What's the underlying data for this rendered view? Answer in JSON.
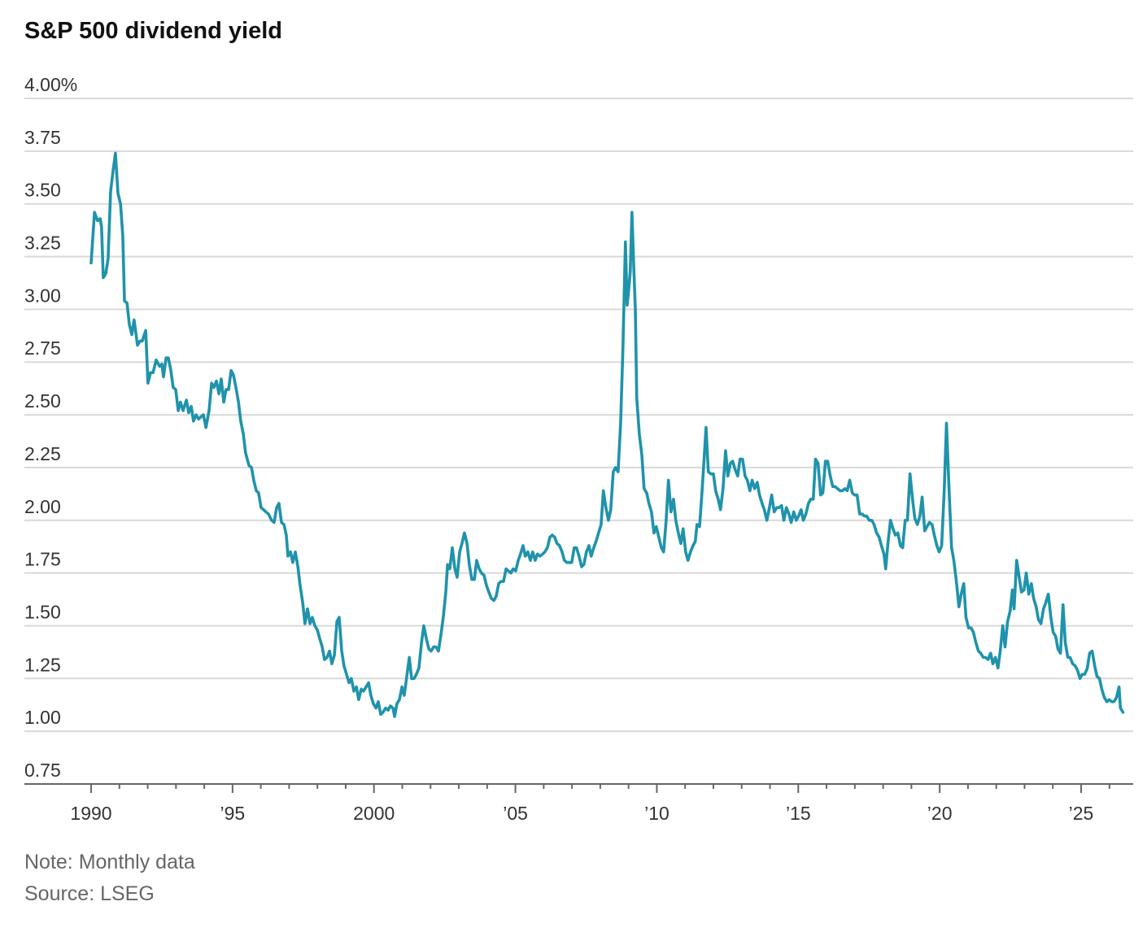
{
  "chart_data": {
    "type": "line",
    "title": "S&P 500 dividend yield",
    "note": "Note: Monthly data",
    "source": "Source: LSEG",
    "xlim": [
      1990,
      2026.84
    ],
    "xticks": [
      1990,
      {
        "value": 1995,
        "label": "’95"
      },
      2000,
      {
        "value": 2005,
        "label": "’05"
      },
      {
        "value": 2010,
        "label": "’10"
      },
      {
        "value": 2015,
        "label": "’15"
      },
      {
        "value": 2020,
        "label": "’20"
      },
      {
        "value": 2025,
        "label": "’25"
      }
    ],
    "xticks_minor": [
      1991,
      1992,
      1993,
      1994,
      1996,
      1997,
      1998,
      1999,
      2001,
      2002,
      2003,
      2004,
      2006,
      2007,
      2008,
      2009,
      2011,
      2012,
      2013,
      2014,
      2016,
      2017,
      2018,
      2019,
      2021,
      2022,
      2023,
      2024,
      2026
    ],
    "ylim": [
      0.75,
      4.0
    ],
    "yticks": [
      0.75,
      {
        "value": 1.0,
        "label": "1.00"
      },
      1.25,
      {
        "value": 1.5,
        "label": "1.50"
      },
      1.75,
      {
        "value": 2.0,
        "label": "2.00"
      },
      2.25,
      {
        "value": 2.5,
        "label": "2.50"
      },
      2.75,
      {
        "value": 3.0,
        "label": "3.00"
      },
      3.25,
      {
        "value": 3.5,
        "label": "3.50"
      },
      3.75,
      {
        "value": 4.0,
        "label": "4.00%"
      }
    ],
    "grid": true,
    "series": [
      {
        "color": "#1f93ab",
        "x": [
          1990.0,
          1990.12,
          1990.23,
          1990.32,
          1990.37,
          1990.43,
          1990.52,
          1990.6,
          1990.69,
          1990.78,
          1990.86,
          1990.95,
          1991.04,
          1991.12,
          1991.18,
          1991.27,
          1991.35,
          1991.44,
          1991.52,
          1991.64,
          1991.73,
          1991.81,
          1991.93,
          1992.01,
          1992.1,
          1992.19,
          1992.3,
          1992.42,
          1992.5,
          1992.56,
          1992.65,
          1992.73,
          1992.82,
          1992.9,
          1992.99,
          1993.08,
          1993.16,
          1993.25,
          1993.37,
          1993.45,
          1993.54,
          1993.62,
          1993.71,
          1993.8,
          1993.88,
          1993.97,
          1994.06,
          1994.17,
          1994.26,
          1994.34,
          1994.43,
          1994.52,
          1994.6,
          1994.69,
          1994.77,
          1994.86,
          1994.95,
          1995.03,
          1995.12,
          1995.21,
          1995.29,
          1995.38,
          1995.46,
          1995.58,
          1995.67,
          1995.75,
          1995.84,
          1995.92,
          1996.01,
          1996.1,
          1996.18,
          1996.27,
          1996.38,
          1996.47,
          1996.56,
          1996.64,
          1996.73,
          1996.82,
          1996.9,
          1996.96,
          1997.05,
          1997.13,
          1997.22,
          1997.31,
          1997.39,
          1997.48,
          1997.56,
          1997.65,
          1997.74,
          1997.82,
          1997.91,
          1998.0,
          1998.08,
          1998.17,
          1998.25,
          1998.34,
          1998.43,
          1998.51,
          1998.6,
          1998.69,
          1998.77,
          1998.86,
          1998.94,
          1999.03,
          1999.12,
          1999.2,
          1999.29,
          1999.38,
          1999.46,
          1999.55,
          1999.63,
          1999.72,
          1999.81,
          1999.89,
          1999.98,
          2000.07,
          2000.15,
          2000.24,
          2000.32,
          2000.41,
          2000.5,
          2000.58,
          2000.67,
          2000.73,
          2000.81,
          2000.9,
          2000.99,
          2001.07,
          2001.16,
          2001.25,
          2001.33,
          2001.42,
          2001.5,
          2001.59,
          2001.68,
          2001.76,
          2001.85,
          2001.94,
          2002.02,
          2002.11,
          2002.19,
          2002.28,
          2002.37,
          2002.45,
          2002.54,
          2002.6,
          2002.68,
          2002.77,
          2002.86,
          2002.94,
          2003.03,
          2003.11,
          2003.2,
          2003.29,
          2003.37,
          2003.46,
          2003.55,
          2003.63,
          2003.72,
          2003.8,
          2003.89,
          2003.98,
          2004.06,
          2004.15,
          2004.24,
          2004.32,
          2004.41,
          2004.49,
          2004.58,
          2004.67,
          2004.75,
          2004.84,
          2004.92,
          2005.01,
          2005.1,
          2005.18,
          2005.27,
          2005.35,
          2005.44,
          2005.53,
          2005.61,
          2005.7,
          2005.78,
          2005.87,
          2005.96,
          2006.04,
          2006.13,
          2006.22,
          2006.3,
          2006.39,
          2006.47,
          2006.56,
          2006.65,
          2006.73,
          2006.82,
          2006.91,
          2006.99,
          2007.08,
          2007.16,
          2007.25,
          2007.34,
          2007.42,
          2007.51,
          2007.6,
          2007.68,
          2007.77,
          2007.85,
          2007.94,
          2008.03,
          2008.11,
          2008.2,
          2008.29,
          2008.37,
          2008.46,
          2008.54,
          2008.63,
          2008.72,
          2008.8,
          2008.89,
          2008.95,
          2009.01,
          2009.06,
          2009.12,
          2009.18,
          2009.24,
          2009.29,
          2009.38,
          2009.47,
          2009.55,
          2009.64,
          2009.72,
          2009.81,
          2009.9,
          2009.98,
          2010.07,
          2010.16,
          2010.24,
          2010.33,
          2010.41,
          2010.5,
          2010.59,
          2010.67,
          2010.76,
          2010.85,
          2010.93,
          2011.02,
          2011.1,
          2011.19,
          2011.28,
          2011.36,
          2011.42,
          2011.51,
          2011.59,
          2011.68,
          2011.74,
          2011.82,
          2011.91,
          2012.0,
          2012.08,
          2012.17,
          2012.25,
          2012.34,
          2012.43,
          2012.51,
          2012.6,
          2012.68,
          2012.77,
          2012.86,
          2012.94,
          2013.03,
          2013.12,
          2013.2,
          2013.29,
          2013.37,
          2013.46,
          2013.55,
          2013.63,
          2013.72,
          2013.8,
          2013.89,
          2013.98,
          2014.06,
          2014.15,
          2014.24,
          2014.32,
          2014.41,
          2014.49,
          2014.58,
          2014.67,
          2014.75,
          2014.84,
          2014.93,
          2015.01,
          2015.1,
          2015.18,
          2015.27,
          2015.36,
          2015.44,
          2015.53,
          2015.61,
          2015.7,
          2015.79,
          2015.87,
          2015.96,
          2016.04,
          2016.13,
          2016.22,
          2016.3,
          2016.39,
          2016.48,
          2016.56,
          2016.65,
          2016.73,
          2016.82,
          2016.91,
          2016.99,
          2017.08,
          2017.17,
          2017.25,
          2017.34,
          2017.42,
          2017.51,
          2017.6,
          2017.68,
          2017.77,
          2017.86,
          2017.94,
          2018.03,
          2018.09,
          2018.17,
          2018.26,
          2018.35,
          2018.43,
          2018.52,
          2018.61,
          2018.69,
          2018.78,
          2018.86,
          2018.95,
          2019.04,
          2019.12,
          2019.21,
          2019.3,
          2019.38,
          2019.47,
          2019.55,
          2019.64,
          2019.73,
          2019.81,
          2019.9,
          2019.98,
          2020.07,
          2020.16,
          2020.24,
          2020.33,
          2020.42,
          2020.5,
          2020.59,
          2020.68,
          2020.76,
          2020.85,
          2020.93,
          2021.02,
          2021.11,
          2021.19,
          2021.28,
          2021.37,
          2021.45,
          2021.54,
          2021.62,
          2021.71,
          2021.8,
          2021.88,
          2021.97,
          2022.06,
          2022.14,
          2022.23,
          2022.31,
          2022.4,
          2022.49,
          2022.57,
          2022.63,
          2022.72,
          2022.8,
          2022.89,
          2022.98,
          2023.06,
          2023.15,
          2023.24,
          2023.32,
          2023.41,
          2023.49,
          2023.58,
          2023.67,
          2023.75,
          2023.84,
          2023.93,
          2024.01,
          2024.1,
          2024.18,
          2024.27,
          2024.36,
          2024.44,
          2024.53,
          2024.61,
          2024.7,
          2024.79,
          2024.87,
          2024.96,
          2025.04,
          2025.13,
          2025.22,
          2025.3,
          2025.39,
          2025.48,
          2025.56,
          2025.65,
          2025.73,
          2025.82,
          2025.91,
          2025.99,
          2026.08,
          2026.16,
          2026.25,
          2026.34,
          2026.39,
          2026.48
        ],
        "values": [
          3.22,
          3.46,
          3.42,
          3.43,
          3.39,
          3.15,
          3.17,
          3.24,
          3.56,
          3.66,
          3.74,
          3.55,
          3.5,
          3.35,
          3.04,
          3.03,
          2.93,
          2.88,
          2.95,
          2.83,
          2.85,
          2.85,
          2.9,
          2.65,
          2.7,
          2.7,
          2.76,
          2.73,
          2.74,
          2.68,
          2.77,
          2.77,
          2.71,
          2.63,
          2.62,
          2.52,
          2.56,
          2.52,
          2.57,
          2.51,
          2.54,
          2.47,
          2.5,
          2.48,
          2.49,
          2.5,
          2.44,
          2.52,
          2.65,
          2.63,
          2.66,
          2.6,
          2.67,
          2.56,
          2.62,
          2.62,
          2.71,
          2.69,
          2.63,
          2.56,
          2.47,
          2.41,
          2.32,
          2.26,
          2.25,
          2.19,
          2.14,
          2.13,
          2.06,
          2.05,
          2.04,
          2.03,
          2.0,
          1.99,
          2.06,
          2.08,
          1.99,
          1.98,
          1.93,
          1.83,
          1.85,
          1.8,
          1.85,
          1.78,
          1.69,
          1.61,
          1.51,
          1.58,
          1.51,
          1.54,
          1.5,
          1.48,
          1.44,
          1.4,
          1.34,
          1.35,
          1.38,
          1.32,
          1.36,
          1.52,
          1.54,
          1.38,
          1.31,
          1.27,
          1.23,
          1.25,
          1.19,
          1.21,
          1.15,
          1.2,
          1.19,
          1.21,
          1.23,
          1.17,
          1.13,
          1.11,
          1.14,
          1.08,
          1.09,
          1.11,
          1.1,
          1.12,
          1.11,
          1.07,
          1.13,
          1.15,
          1.21,
          1.17,
          1.26,
          1.35,
          1.25,
          1.25,
          1.27,
          1.3,
          1.42,
          1.5,
          1.44,
          1.39,
          1.38,
          1.4,
          1.4,
          1.38,
          1.46,
          1.54,
          1.66,
          1.79,
          1.77,
          1.87,
          1.77,
          1.73,
          1.85,
          1.89,
          1.94,
          1.89,
          1.79,
          1.72,
          1.72,
          1.81,
          1.77,
          1.75,
          1.74,
          1.69,
          1.66,
          1.63,
          1.62,
          1.64,
          1.7,
          1.71,
          1.71,
          1.77,
          1.76,
          1.75,
          1.77,
          1.76,
          1.81,
          1.84,
          1.88,
          1.83,
          1.85,
          1.81,
          1.85,
          1.81,
          1.84,
          1.83,
          1.84,
          1.85,
          1.87,
          1.92,
          1.93,
          1.92,
          1.89,
          1.88,
          1.85,
          1.81,
          1.8,
          1.8,
          1.8,
          1.87,
          1.87,
          1.83,
          1.78,
          1.79,
          1.85,
          1.88,
          1.83,
          1.87,
          1.9,
          1.94,
          1.98,
          2.14,
          2.06,
          2.0,
          2.05,
          2.23,
          2.25,
          2.23,
          2.46,
          2.81,
          3.32,
          3.02,
          3.1,
          3.18,
          3.46,
          3.22,
          3.0,
          2.58,
          2.41,
          2.31,
          2.15,
          2.13,
          2.08,
          2.04,
          1.94,
          1.97,
          1.92,
          1.87,
          1.85,
          2.0,
          2.19,
          2.04,
          2.1,
          2.0,
          1.94,
          1.89,
          1.96,
          1.85,
          1.81,
          1.85,
          1.88,
          1.9,
          1.98,
          1.97,
          2.12,
          2.31,
          2.44,
          2.23,
          2.22,
          2.22,
          2.14,
          2.1,
          2.05,
          2.15,
          2.33,
          2.21,
          2.27,
          2.28,
          2.24,
          2.21,
          2.29,
          2.29,
          2.21,
          2.19,
          2.14,
          2.19,
          2.15,
          2.18,
          2.12,
          2.08,
          2.05,
          2.0,
          2.06,
          2.12,
          2.04,
          2.06,
          2.06,
          2.07,
          2.0,
          2.06,
          2.03,
          1.99,
          2.04,
          2.0,
          2.02,
          2.05,
          2.0,
          2.03,
          2.08,
          2.1,
          2.1,
          2.29,
          2.27,
          2.12,
          2.13,
          2.28,
          2.28,
          2.21,
          2.16,
          2.16,
          2.15,
          2.14,
          2.14,
          2.15,
          2.14,
          2.19,
          2.13,
          2.12,
          2.12,
          2.03,
          2.03,
          2.02,
          2.02,
          2.0,
          2.0,
          1.98,
          1.94,
          1.92,
          1.88,
          1.84,
          1.77,
          1.89,
          2.0,
          1.96,
          1.93,
          1.94,
          1.88,
          1.87,
          2.0,
          2.0,
          2.22,
          2.1,
          2.01,
          1.98,
          2.02,
          2.11,
          1.95,
          1.97,
          1.99,
          1.98,
          1.93,
          1.88,
          1.85,
          1.88,
          2.14,
          2.46,
          2.15,
          1.87,
          1.81,
          1.71,
          1.59,
          1.65,
          1.7,
          1.54,
          1.49,
          1.49,
          1.47,
          1.42,
          1.38,
          1.37,
          1.35,
          1.35,
          1.34,
          1.37,
          1.32,
          1.35,
          1.3,
          1.38,
          1.5,
          1.4,
          1.52,
          1.57,
          1.67,
          1.58,
          1.81,
          1.74,
          1.66,
          1.67,
          1.75,
          1.65,
          1.7,
          1.63,
          1.59,
          1.53,
          1.51,
          1.58,
          1.61,
          1.65,
          1.54,
          1.47,
          1.45,
          1.39,
          1.37,
          1.6,
          1.42,
          1.35,
          1.35,
          1.32,
          1.31,
          1.29,
          1.25,
          1.27,
          1.27,
          1.3,
          1.37,
          1.38,
          1.31,
          1.26,
          1.25,
          1.2,
          1.16,
          1.14,
          1.15,
          1.14,
          1.14,
          1.16,
          1.21,
          1.11,
          1.09
        ]
      }
    ]
  }
}
